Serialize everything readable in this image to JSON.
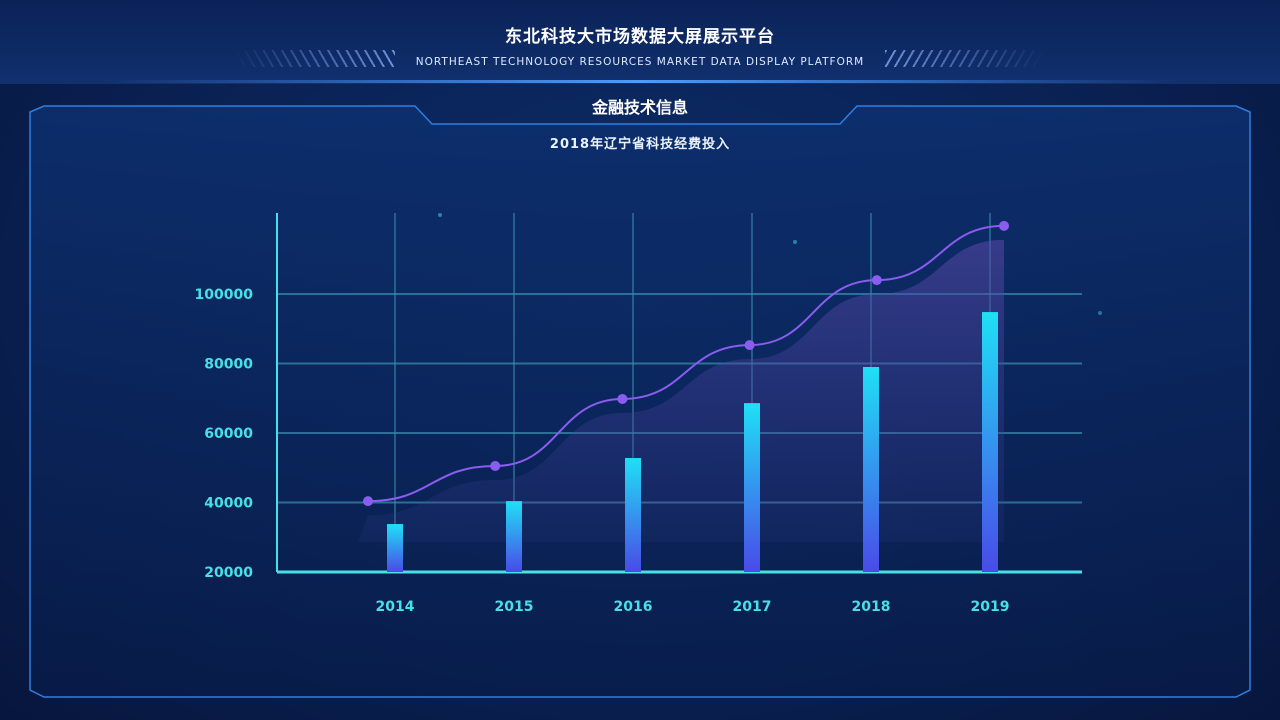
{
  "header": {
    "title": "东北科技大市场数据大屏展示平台",
    "subtitle": "NORTHEAST TECHNOLOGY RESOURCES MARKET DATA DISPLAY PLATFORM"
  },
  "panel": {
    "title": "金融技术信息"
  },
  "colors": {
    "accent": "#46e0e6",
    "line": "#8a5cf0",
    "bar_top": "#1fe0f5",
    "bar_bottom": "#4a4ae8"
  },
  "chart_data": {
    "type": "bar",
    "title": "2018年辽宁省科技经费投入",
    "categories": [
      "2014",
      "2015",
      "2016",
      "2017",
      "2018",
      "2019"
    ],
    "series": [
      {
        "name": "bars",
        "type": "bar",
        "values": [
          33800,
          40400,
          52800,
          68600,
          79000,
          94800
        ]
      },
      {
        "name": "line",
        "type": "line",
        "values": [
          40400,
          50500,
          69800,
          85300,
          104000,
          119600
        ]
      }
    ],
    "yticks": [
      "20000",
      "40000",
      "60000",
      "80000",
      "100000"
    ],
    "ylim": [
      20000,
      120000
    ],
    "grid": true,
    "xlabel": "",
    "ylabel": ""
  }
}
